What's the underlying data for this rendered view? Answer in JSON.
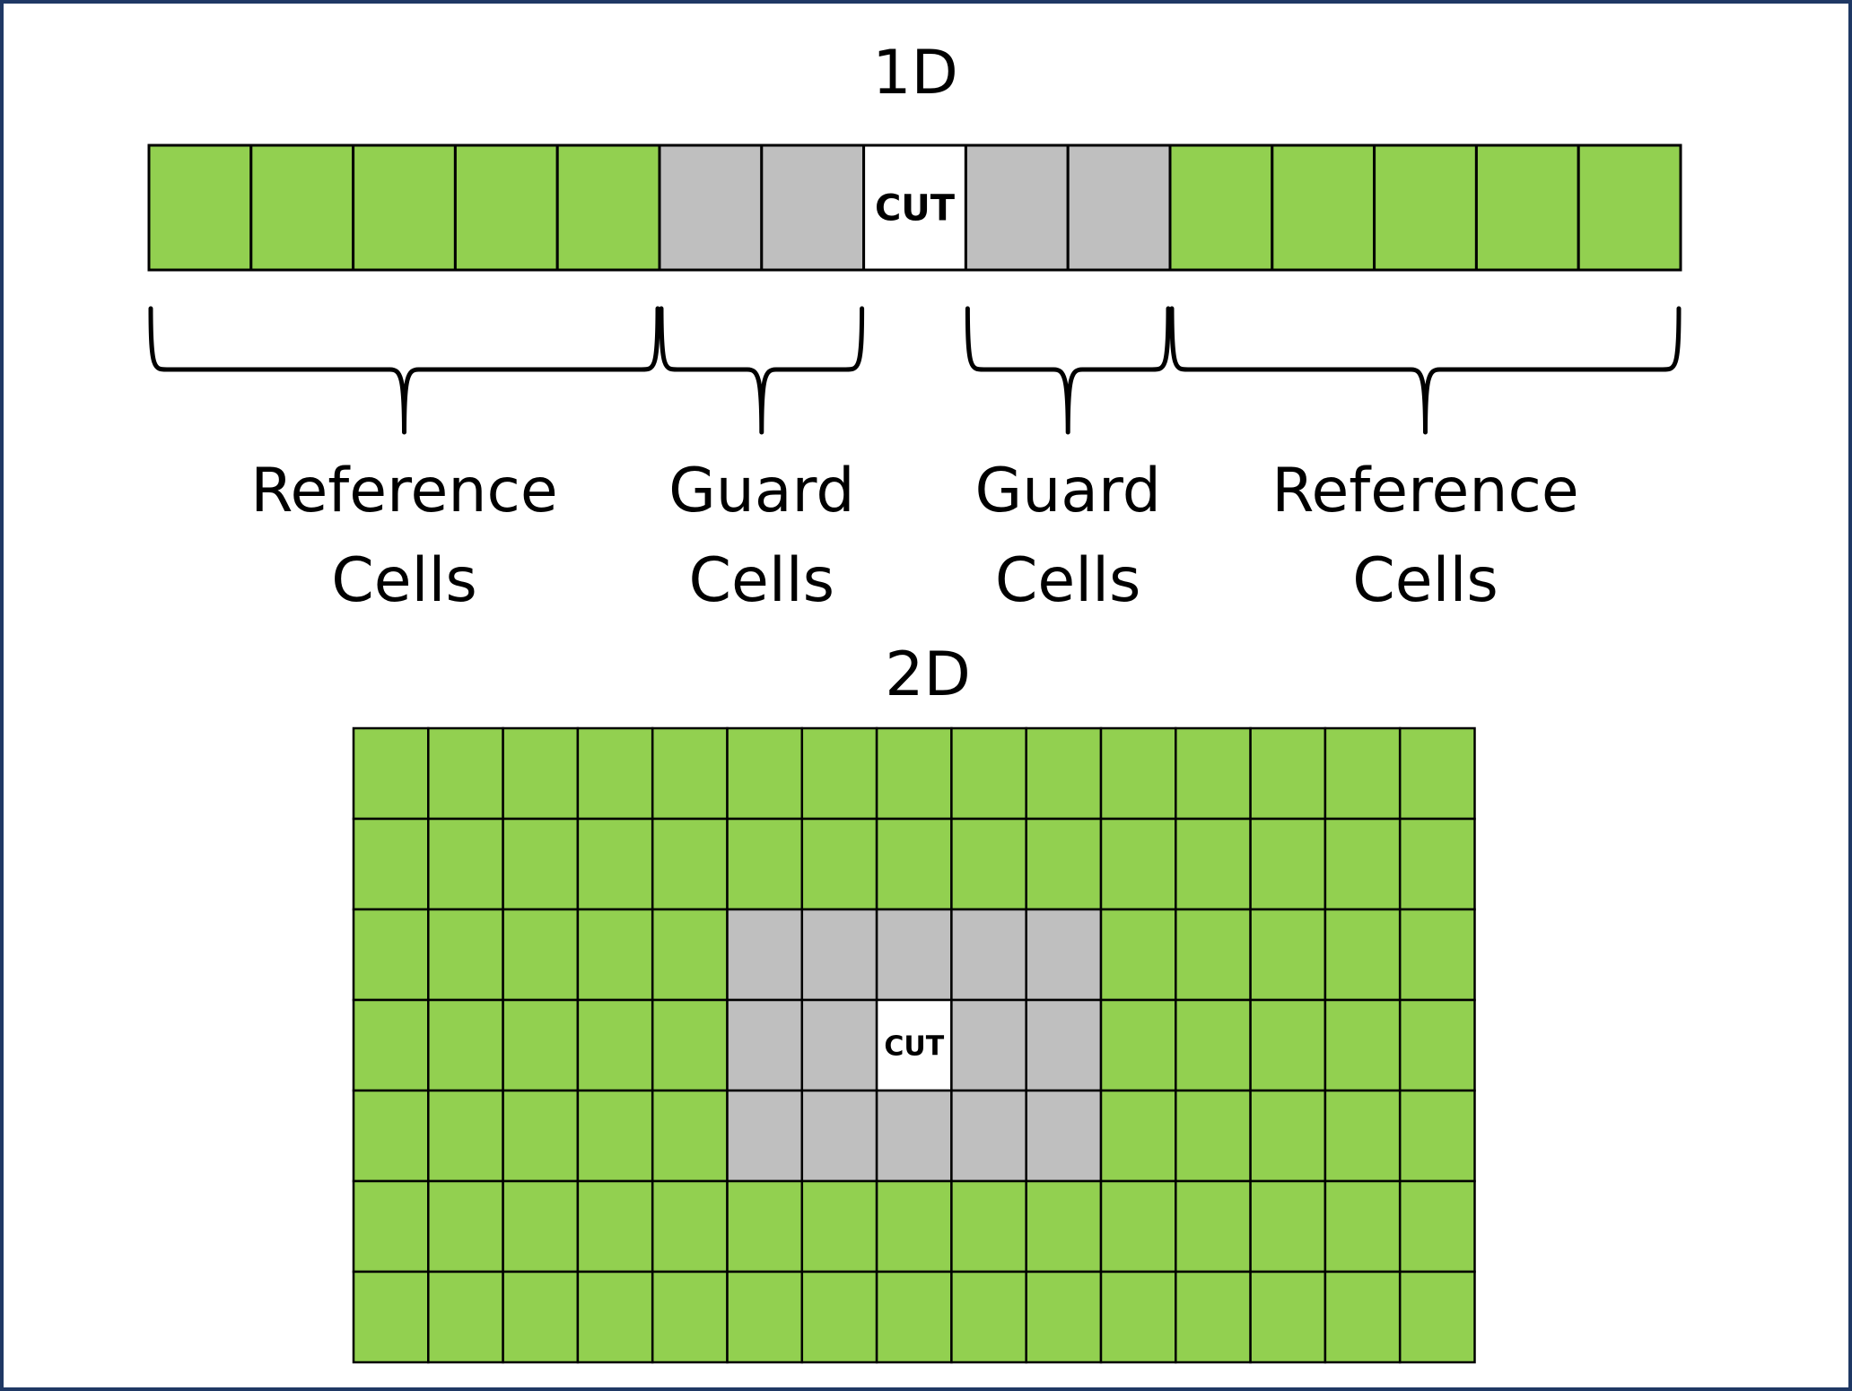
{
  "diagram": {
    "colors": {
      "reference": "#92d050",
      "guard": "#bfbfbf",
      "cut": "#ffffff",
      "grid_line": "#000000",
      "frame": "#1f3864"
    },
    "one_d": {
      "title": "1D",
      "cells": [
        "reference",
        "reference",
        "reference",
        "reference",
        "reference",
        "guard",
        "guard",
        "cut",
        "guard",
        "guard",
        "reference",
        "reference",
        "reference",
        "reference",
        "reference"
      ],
      "cut_label": "CUT",
      "groups": [
        {
          "line1": "Reference",
          "line2": "Cells",
          "start_cell": 0,
          "end_cell": 4
        },
        {
          "line1": "Guard",
          "line2": "Cells",
          "start_cell": 5,
          "end_cell": 6
        },
        {
          "line1": "Guard",
          "line2": "Cells",
          "start_cell": 8,
          "end_cell": 9
        },
        {
          "line1": "Reference",
          "line2": "Cells",
          "start_cell": 10,
          "end_cell": 14
        }
      ]
    },
    "two_d": {
      "title": "2D",
      "rows": 7,
      "cols": 15,
      "guard_rows": [
        2,
        4
      ],
      "guard_cols": [
        5,
        9
      ],
      "cut_row": 3,
      "cut_col": 7,
      "cut_label": "CUT"
    }
  }
}
